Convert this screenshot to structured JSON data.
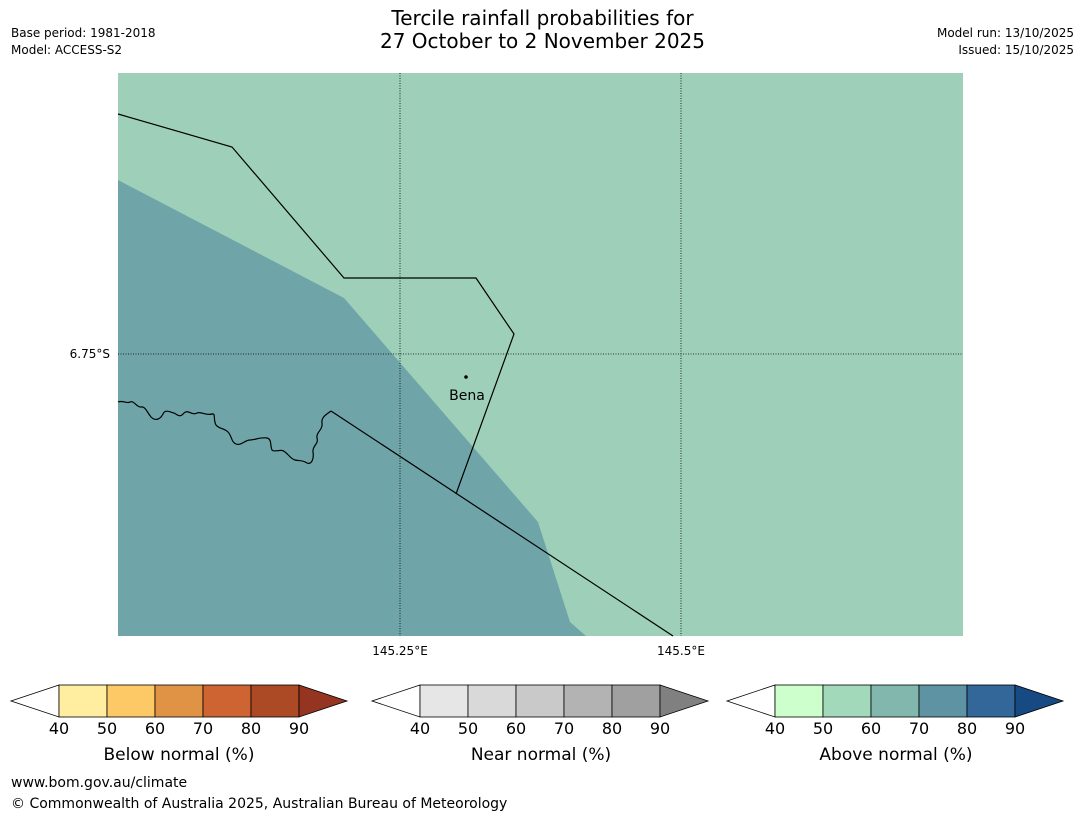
{
  "header": {
    "base_period": "Base period: 1981-2018",
    "model": "Model: ACCESS-S2",
    "title_line1": "Tercile rainfall probabilities for",
    "title_line2": "27 October to 2 November 2025",
    "model_run": "Model run: 13/10/2025",
    "issued": "Issued: 15/10/2025"
  },
  "map": {
    "lat_label": "6.75°S",
    "lon_labels": [
      "145.25°E",
      "145.5°E"
    ],
    "place_label": "Bena",
    "regions": [
      {
        "category": "Above normal",
        "band": "50-60",
        "color": "#9ed0b9"
      },
      {
        "category": "Above normal",
        "band": "60-70",
        "color": "#6fa5a8"
      }
    ]
  },
  "legends": [
    {
      "label": "Below normal (%)",
      "ticks": [
        "40",
        "50",
        "60",
        "70",
        "80",
        "90"
      ],
      "colors": [
        "#ffffff",
        "#ffeda0",
        "#fdc966",
        "#e09345",
        "#cd6432",
        "#ad4a26",
        "#943421"
      ]
    },
    {
      "label": "Near normal (%)",
      "ticks": [
        "40",
        "50",
        "60",
        "70",
        "80",
        "90"
      ],
      "colors": [
        "#ffffff",
        "#e6e6e6",
        "#d9d9d9",
        "#c9c9c9",
        "#b3b3b3",
        "#a0a0a0",
        "#808080"
      ]
    },
    {
      "label": "Above normal (%)",
      "ticks": [
        "40",
        "50",
        "60",
        "70",
        "80",
        "90"
      ],
      "colors": [
        "#ffffff",
        "#ccffcc",
        "#a3d9bb",
        "#82b7ad",
        "#5d93a3",
        "#336699",
        "#174a82"
      ]
    }
  ],
  "footer": {
    "url": "www.bom.gov.au/climate",
    "copyright": "© Commonwealth of Australia 2025, Australian Bureau of Meteorology"
  }
}
